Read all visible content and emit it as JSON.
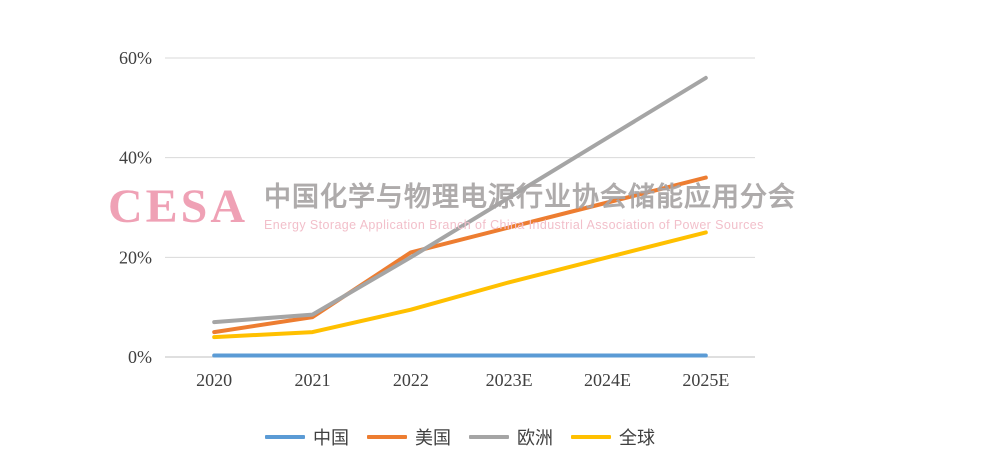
{
  "watermark": {
    "logo": "CESA",
    "title_cn": "中国化学与物理电源行业协会储能应用分会",
    "title_en": "Energy Storage Application Branch of China Industrial Association of Power Sources"
  },
  "chart_data": {
    "type": "line",
    "title": "",
    "xlabel": "",
    "ylabel": "",
    "categories": [
      "2020",
      "2021",
      "2022",
      "2023E",
      "2024E",
      "2025E"
    ],
    "series": [
      {
        "name": "中国",
        "color": "#5B9BD5",
        "values": [
          0.3,
          0.3,
          0.3,
          0.3,
          0.3,
          0.3
        ]
      },
      {
        "name": "美国",
        "color": "#ED7D31",
        "values": [
          5,
          8,
          21,
          26,
          31,
          36
        ]
      },
      {
        "name": "欧洲",
        "color": "#A5A5A5",
        "values": [
          7,
          8.5,
          20,
          32,
          44,
          56
        ]
      },
      {
        "name": "全球",
        "color": "#FFC000",
        "values": [
          4,
          5,
          9.5,
          15,
          20,
          25
        ]
      }
    ],
    "ylim": [
      0,
      60
    ],
    "yticks": [
      0,
      20,
      40,
      60
    ],
    "ytick_format": "percent",
    "grid": true,
    "legend_position": "bottom",
    "colors": {
      "gridline": "#D9D9D9",
      "axis_line": "#BFBFBF",
      "tick_label": "#404040"
    }
  }
}
